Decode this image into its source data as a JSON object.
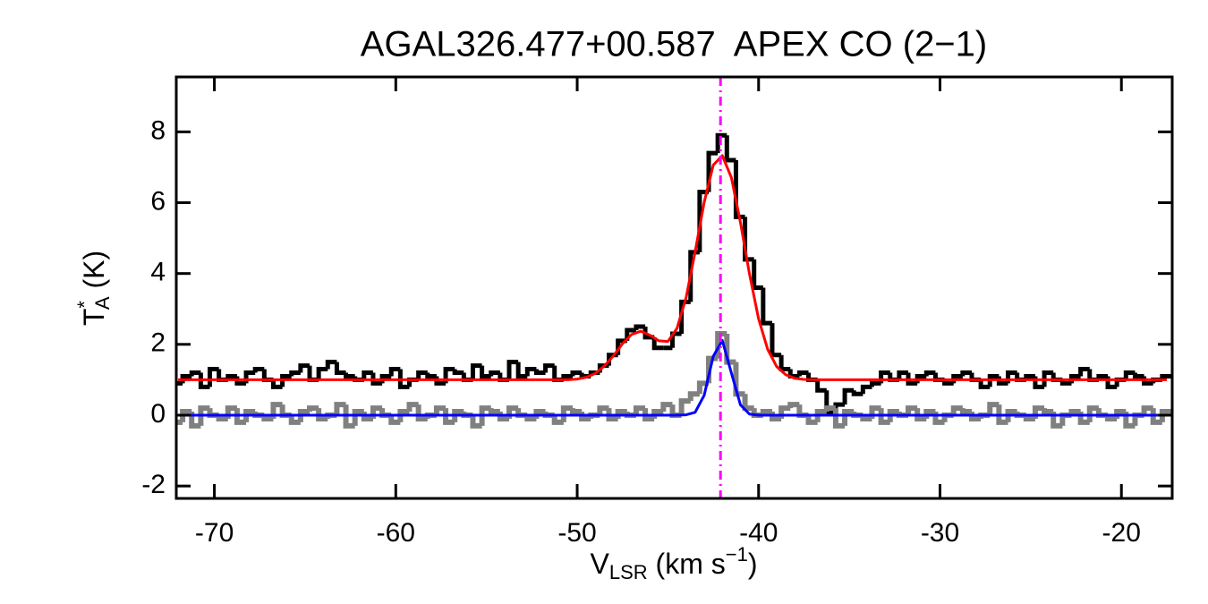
{
  "chart_data": {
    "type": "spectrum",
    "title": "AGAL326.477+00.587  APEX CO (2−1)",
    "xlabel": {
      "main": "V",
      "sub": "LSR",
      "unit": " (km s",
      "sup": "−1",
      "close": ")"
    },
    "ylabel": {
      "main": "T",
      "sup": "*",
      "sub": "A",
      "unit": " (K)"
    },
    "xlim": [
      -72.1,
      -17.2
    ],
    "ylim": [
      -2.35,
      9.55
    ],
    "xticks": [
      -70,
      -60,
      -50,
      -40,
      -30,
      -20
    ],
    "yticks": [
      -2,
      0,
      2,
      4,
      6,
      8
    ],
    "vline": -42.1,
    "vline_color": "#ff00ff",
    "x": [
      -72,
      -71.5,
      -71,
      -70.5,
      -70,
      -69.5,
      -69,
      -68.5,
      -68,
      -67.5,
      -67,
      -66.5,
      -66,
      -65.5,
      -65,
      -64.5,
      -64,
      -63.5,
      -63,
      -62.5,
      -62,
      -61.5,
      -61,
      -60.5,
      -60,
      -59.5,
      -59,
      -58.5,
      -58,
      -57.5,
      -57,
      -56.5,
      -56,
      -55.5,
      -55,
      -54.5,
      -54,
      -53.5,
      -53,
      -52.5,
      -52,
      -51.5,
      -51,
      -50.5,
      -50,
      -49.5,
      -49,
      -48.5,
      -48,
      -47.5,
      -47,
      -46.5,
      -46,
      -45.5,
      -45,
      -44.5,
      -44,
      -43.5,
      -43,
      -42.5,
      -42,
      -41.5,
      -41,
      -40.5,
      -40,
      -39.5,
      -39,
      -38.5,
      -38,
      -37.5,
      -37,
      -36.5,
      -36,
      -35.5,
      -35,
      -34.5,
      -34,
      -33.5,
      -33,
      -32.5,
      -32,
      -31.5,
      -31,
      -30.5,
      -30,
      -29.5,
      -29,
      -28.5,
      -28,
      -27.5,
      -27,
      -26.5,
      -26,
      -25.5,
      -25,
      -24.5,
      -24,
      -23.5,
      -23,
      -22.5,
      -22,
      -21.5,
      -21,
      -20.5,
      -20,
      -19.5,
      -19,
      -18.5,
      -18,
      -17.5
    ],
    "series": [
      {
        "color": "#000000",
        "style": "steps",
        "width": 5,
        "values": [
          0.9,
          1.1,
          1.2,
          0.8,
          1.3,
          1.0,
          1.1,
          0.9,
          1.2,
          1.3,
          1.0,
          0.8,
          1.1,
          1.2,
          1.4,
          1.0,
          1.3,
          1.5,
          1.2,
          1.1,
          1.0,
          1.2,
          0.9,
          1.1,
          1.3,
          0.8,
          1.0,
          1.2,
          1.1,
          0.9,
          1.3,
          1.2,
          1.0,
          1.4,
          1.1,
          1.2,
          1.0,
          1.5,
          1.1,
          1.3,
          1.2,
          1.4,
          1.0,
          1.1,
          1.2,
          1.1,
          1.2,
          1.4,
          1.7,
          2.1,
          2.4,
          2.5,
          2.2,
          1.9,
          1.9,
          2.3,
          3.2,
          4.6,
          6.3,
          7.4,
          7.9,
          7.2,
          5.6,
          4.4,
          3.6,
          2.6,
          1.7,
          1.3,
          1.1,
          1.2,
          1.0,
          0.7,
          0.1,
          0.3,
          0.7,
          0.6,
          0.8,
          0.9,
          1.2,
          1.0,
          1.2,
          0.9,
          1.1,
          1.2,
          1.0,
          0.9,
          1.1,
          1.2,
          1.0,
          0.8,
          1.1,
          0.9,
          1.2,
          1.0,
          1.1,
          0.8,
          1.2,
          1.0,
          0.9,
          1.1,
          1.3,
          1.0,
          1.1,
          0.8,
          1.0,
          1.2,
          1.1,
          0.9,
          1.0,
          1.1
        ]
      },
      {
        "color": "#808080",
        "style": "steps",
        "width": 6,
        "values": [
          -0.2,
          0.1,
          -0.3,
          0.2,
          0.0,
          -0.1,
          0.2,
          -0.2,
          0.1,
          0.0,
          -0.1,
          0.3,
          0.0,
          -0.2,
          0.1,
          0.2,
          -0.1,
          0.0,
          0.3,
          -0.3,
          0.1,
          -0.1,
          0.2,
          0.0,
          -0.2,
          0.1,
          0.3,
          -0.1,
          0.0,
          0.2,
          -0.2,
          0.1,
          0.0,
          -0.3,
          0.2,
          0.1,
          -0.1,
          0.2,
          0.0,
          -0.1,
          0.1,
          0.0,
          -0.2,
          0.2,
          0.1,
          -0.1,
          0.0,
          0.2,
          -0.1,
          0.1,
          0.0,
          0.2,
          -0.1,
          0.1,
          0.3,
          0.0,
          0.4,
          0.6,
          0.9,
          1.6,
          2.3,
          1.5,
          0.6,
          0.2,
          0.0,
          0.1,
          -0.1,
          0.2,
          0.3,
          0.0,
          -0.2,
          0.1,
          0.2,
          -0.3,
          0.1,
          0.0,
          -0.1,
          0.2,
          -0.2,
          0.1,
          0.0,
          0.2,
          -0.1,
          0.1,
          -0.2,
          0.0,
          0.2,
          0.1,
          -0.1,
          0.0,
          0.3,
          -0.2,
          0.1,
          0.0,
          -0.1,
          0.2,
          0.1,
          -0.3,
          0.0,
          0.1,
          -0.2,
          0.2,
          0.0,
          -0.1,
          0.1,
          -0.3,
          0.0,
          0.2,
          -0.2,
          0.1
        ]
      },
      {
        "color": "#ff0000",
        "style": "line",
        "width": 3,
        "values": [
          1,
          1,
          1,
          1,
          1,
          1,
          1,
          1,
          1,
          1,
          1,
          1,
          1,
          1,
          1,
          1,
          1,
          1,
          1,
          1,
          1,
          1,
          1,
          1,
          1,
          1,
          1,
          1,
          1,
          1,
          1,
          1,
          1,
          1,
          1,
          1,
          1,
          1,
          1,
          1,
          1,
          1,
          1,
          1,
          1.02,
          1.07,
          1.18,
          1.39,
          1.68,
          2.02,
          2.28,
          2.37,
          2.26,
          2.1,
          2.08,
          2.45,
          3.31,
          4.61,
          6.01,
          7.06,
          7.33,
          6.71,
          5.44,
          3.98,
          2.72,
          1.86,
          1.37,
          1.14,
          1.04,
          1.01,
          1,
          1,
          1,
          1,
          1,
          1,
          1,
          1,
          1,
          1,
          1,
          1,
          1,
          1,
          1,
          1,
          1,
          1,
          1,
          1,
          1,
          1,
          1,
          1,
          1,
          1,
          1,
          1,
          1,
          1,
          1,
          1,
          1,
          1,
          1,
          1,
          1,
          1,
          1,
          1
        ]
      },
      {
        "color": "#0000ff",
        "style": "line",
        "width": 3,
        "values": [
          0,
          0,
          0,
          0,
          0,
          0,
          0,
          0,
          0,
          0,
          0,
          0,
          0,
          0,
          0,
          0,
          0,
          0,
          0,
          0,
          0,
          0,
          0,
          0,
          0,
          0,
          0,
          0,
          0,
          0,
          0,
          0,
          0,
          0,
          0,
          0,
          0,
          0,
          0,
          0,
          0,
          0,
          0,
          0,
          0,
          0,
          0,
          0,
          0,
          0,
          0,
          0,
          0,
          0,
          0,
          0,
          0.01,
          0.08,
          0.56,
          1.66,
          2.11,
          1.19,
          0.29,
          0.03,
          0,
          0,
          0,
          0,
          0,
          0,
          0,
          0,
          0,
          0,
          0,
          0,
          0,
          0,
          0,
          0,
          0,
          0,
          0,
          0,
          0,
          0,
          0,
          0,
          0,
          0,
          0,
          0,
          0,
          0,
          0,
          0,
          0,
          0,
          0,
          0,
          0,
          0,
          0,
          0,
          0,
          0,
          0,
          0,
          0,
          0
        ]
      }
    ]
  }
}
